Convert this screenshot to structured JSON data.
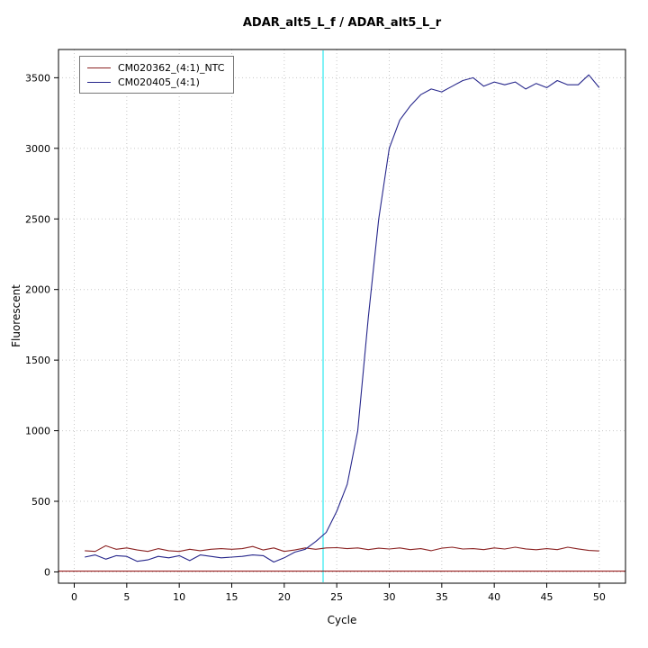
{
  "title": "ADAR_alt5_L_f / ADAR_alt5_L_r",
  "chart_data": {
    "type": "line",
    "title": "ADAR_alt5_L_f / ADAR_alt5_L_r",
    "xlabel": "Cycle",
    "ylabel": "Fluorescent",
    "xlim": [
      -1.5,
      52.5
    ],
    "ylim": [
      -80,
      3700
    ],
    "xticks": [
      0,
      5,
      10,
      15,
      20,
      25,
      30,
      35,
      40,
      45,
      50
    ],
    "yticks": [
      0,
      500,
      1000,
      1500,
      2000,
      2500,
      3000,
      3500
    ],
    "grid": true,
    "grid_color": "#c8c8c8",
    "legend_position": "top-left",
    "threshold_line": {
      "y": 5,
      "color": "#8b0000"
    },
    "ct_line": {
      "x": 23.7,
      "color": "#00e5ee"
    },
    "x": [
      1,
      2,
      3,
      4,
      5,
      6,
      7,
      8,
      9,
      10,
      11,
      12,
      13,
      14,
      15,
      16,
      17,
      18,
      19,
      20,
      21,
      22,
      23,
      24,
      25,
      26,
      27,
      28,
      29,
      30,
      31,
      32,
      33,
      34,
      35,
      36,
      37,
      38,
      39,
      40,
      41,
      42,
      43,
      44,
      45,
      46,
      47,
      48,
      49,
      50
    ],
    "series": [
      {
        "name": "CM020362_(4:1)_NTC",
        "color": "#8b2323",
        "values": [
          150,
          145,
          185,
          160,
          170,
          155,
          145,
          165,
          150,
          145,
          160,
          150,
          160,
          165,
          160,
          165,
          180,
          155,
          170,
          145,
          155,
          170,
          160,
          170,
          172,
          165,
          170,
          158,
          168,
          162,
          170,
          158,
          165,
          150,
          168,
          175,
          162,
          165,
          158,
          170,
          162,
          175,
          163,
          157,
          165,
          158,
          175,
          163,
          152,
          148
        ]
      },
      {
        "name": "CM020405_(4:1)",
        "color": "#26268b",
        "values": [
          105,
          120,
          90,
          115,
          110,
          75,
          85,
          110,
          100,
          115,
          80,
          120,
          110,
          100,
          105,
          110,
          120,
          115,
          70,
          100,
          140,
          160,
          215,
          280,
          430,
          620,
          1000,
          1800,
          2500,
          3000,
          3200,
          3300,
          3380,
          3420,
          3400,
          3440,
          3480,
          3500,
          3440,
          3470,
          3450,
          3470,
          3420,
          3460,
          3430,
          3480,
          3450,
          3450,
          3520,
          3430
        ]
      }
    ]
  }
}
